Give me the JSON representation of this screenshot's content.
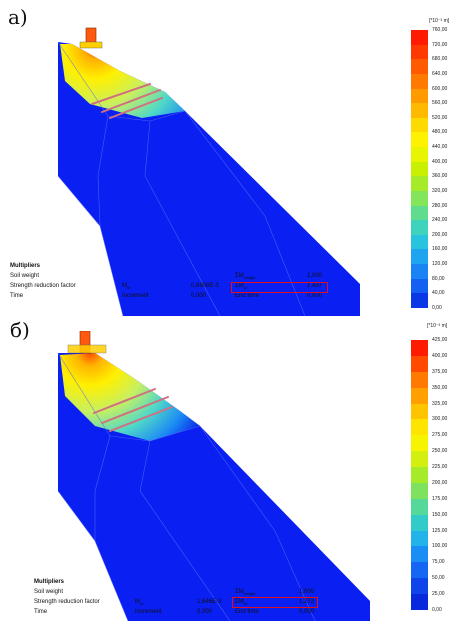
{
  "panels": [
    {
      "label": "а)",
      "multipliers": {
        "title": "Multipliers",
        "row1": {
          "label": "Soil weight",
          "sym": "ΣM",
          "sub": "weight",
          "value": "1,000"
        },
        "row2": {
          "label": "Strength reduction factor",
          "sym_mid": "M",
          "sub_mid": "sf",
          "mid_value": "0,6908E-3",
          "sym": "ΣM",
          "sub": "sf",
          "value": "1,437"
        },
        "row3": {
          "label": "Time",
          "inc_label": "Increment",
          "inc_value": "0,000",
          "end_label": "End time",
          "end_value": "0,000"
        }
      },
      "legend": {
        "unit": "[*10⁻³ m]",
        "ticks": [
          "760,00",
          "720,00",
          "680,00",
          "640,00",
          "600,00",
          "560,00",
          "520,00",
          "480,00",
          "440,00",
          "400,00",
          "360,00",
          "320,00",
          "280,00",
          "240,00",
          "200,00",
          "160,00",
          "120,00",
          "80,00",
          "40,00",
          "0,00"
        ],
        "colors": [
          "#ff1a00",
          "#ff3a00",
          "#ff5a00",
          "#ff7a00",
          "#ff9a00",
          "#ffba00",
          "#ffda00",
          "#fff200",
          "#e8f500",
          "#c8f000",
          "#a6eb2a",
          "#84e45a",
          "#5fdc8e",
          "#3fd2bd",
          "#27c3df",
          "#1fa5f0",
          "#1a84f5",
          "#1460f2",
          "#0b38e6"
        ]
      }
    },
    {
      "label": "б)",
      "multipliers": {
        "title": "Multipliers",
        "row1": {
          "label": "Soil weight",
          "sym": "ΣM",
          "sub": "weight",
          "value": "1,000"
        },
        "row2": {
          "label": "Strength reduction factor",
          "sym_mid": "M",
          "sub_mid": "sf",
          "mid_value": "1,646E-3",
          "sym": "ΣM",
          "sub": "sf",
          "value": "1,273"
        },
        "row3": {
          "label": "Time",
          "inc_label": "Increment",
          "inc_value": "0,000",
          "end_label": "End time",
          "end_value": "0,000"
        }
      },
      "legend": {
        "unit": "[*10⁻³ m]",
        "ticks": [
          "425,00",
          "400,00",
          "375,00",
          "350,00",
          "325,00",
          "300,00",
          "275,00",
          "250,00",
          "225,00",
          "200,00",
          "175,00",
          "150,00",
          "125,00",
          "100,00",
          "75,00",
          "50,00",
          "25,00",
          "0,00"
        ],
        "colors": [
          "#ff1a00",
          "#ff4a00",
          "#ff7a00",
          "#ffa000",
          "#ffc400",
          "#ffe400",
          "#f6f400",
          "#d2ef10",
          "#a6eb2a",
          "#7ee25e",
          "#55d99a",
          "#33cbc9",
          "#22b3e8",
          "#1a8ef4",
          "#1566f3",
          "#0e44ea",
          "#0828de"
        ]
      }
    }
  ]
}
